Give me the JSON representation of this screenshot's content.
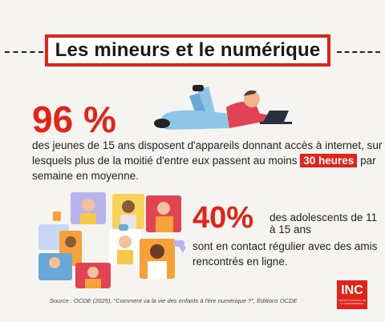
{
  "title": "Les mineurs et le numérique",
  "stat1": {
    "value": "96 %",
    "text_before": "des jeunes de 15 ans disposent d'appareils donnant accès à internet, sur lesquels plus de la moitié d'entre eux passent au moins ",
    "highlight": "30 heures",
    "text_after": " par semaine en moyenne."
  },
  "stat2": {
    "value": "40%",
    "text_line1": "des adolescents de 11 à 15 ans",
    "text_rest": "sont en contact régulier avec des amis rencontrés en ligne."
  },
  "source": "Source : OCDE (2025), \"Comment va la vie des enfants à l'ère numérique ?\", Éditions OCDE",
  "logo": {
    "name": "INC",
    "subtitle": "INSTITUT NATIONAL DE LA CONSOMMATION"
  },
  "colors": {
    "accent": "#e2231a",
    "background": "#f5f4f0"
  }
}
